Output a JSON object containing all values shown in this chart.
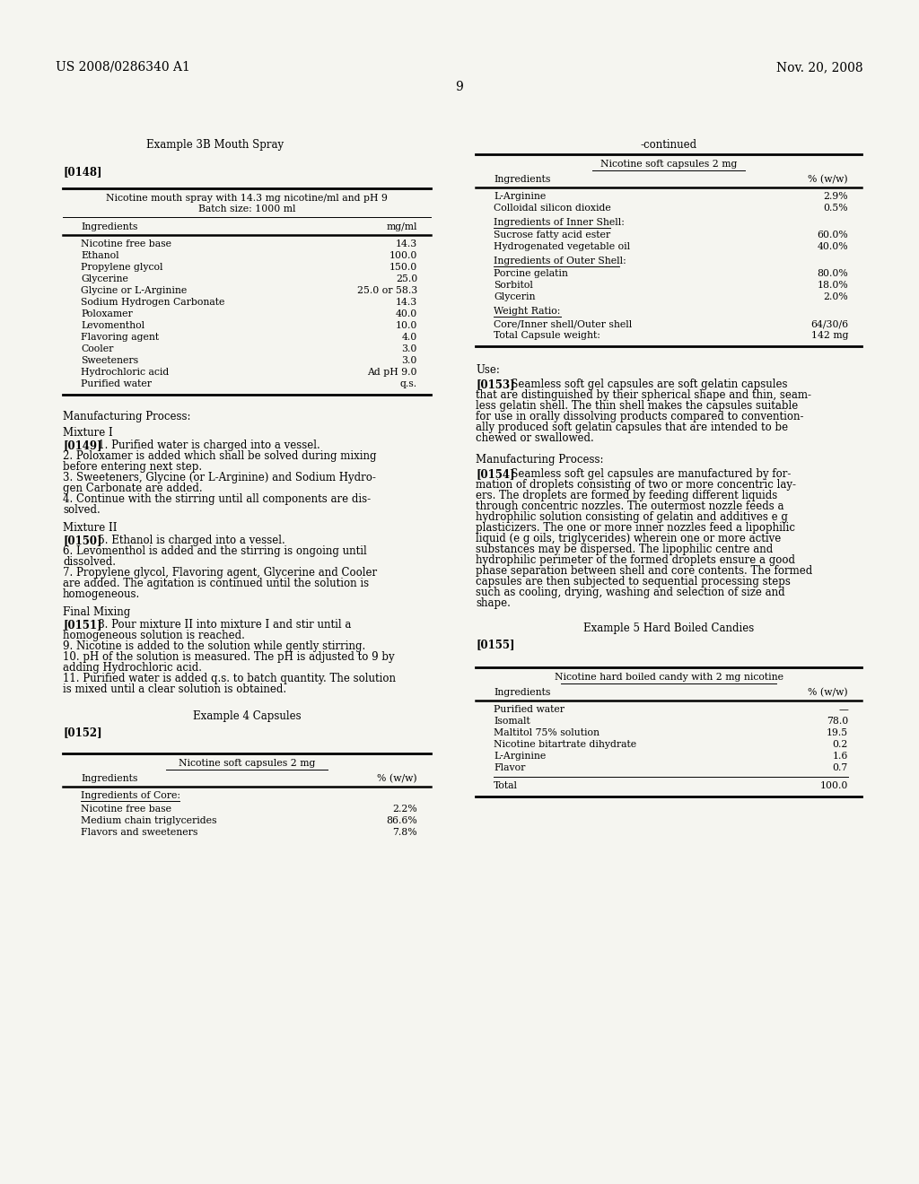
{
  "bg_color": "#f5f5f0",
  "header_left": "US 2008/0286340 A1",
  "header_right": "Nov. 20, 2008",
  "page_number": "9",
  "left_col": {
    "example_title": "Example 3B Mouth Spray",
    "para148": "[0148]",
    "table1": {
      "title1": "Nicotine mouth spray with 14.3 mg nicotine/ml and pH 9",
      "title2": "Batch size: 1000 ml",
      "col1": "Ingredients",
      "col2": "mg/ml",
      "rows": [
        [
          "Nicotine free base",
          "14.3"
        ],
        [
          "Ethanol",
          "100.0"
        ],
        [
          "Propylene glycol",
          "150.0"
        ],
        [
          "Glycerine",
          "25.0"
        ],
        [
          "Glycine or L-Arginine",
          "25.0 or 58.3"
        ],
        [
          "Sodium Hydrogen Carbonate",
          "14.3"
        ],
        [
          "Poloxamer",
          "40.0"
        ],
        [
          "Levomenthol",
          "10.0"
        ],
        [
          "Flavoring agent",
          "4.0"
        ],
        [
          "Cooler",
          "3.0"
        ],
        [
          "Sweeteners",
          "3.0"
        ],
        [
          "Hydrochloric acid",
          "Ad pH 9.0"
        ],
        [
          "Purified water",
          "q.s."
        ]
      ]
    },
    "mfg_title": "Manufacturing Process:",
    "mixture1_title": "Mixture I",
    "para149_bold": "[0149]",
    "para149_text": "   1. Purified water is charged into a vessel.\n2. Poloxamer is added which shall be solved during mixing\nbefore entering next step.\n3. Sweeteners, Glycine (or L-Arginine) and Sodium Hydro-\ngen Carbonate are added.\n4. Continue with the stirring until all components are dis-\nsolved.",
    "mixture2_title": "Mixture II",
    "para150_bold": "[0150]",
    "para150_text": "   5. Ethanol is charged into a vessel.\n6. Levomenthol is added and the stirring is ongoing until\ndissolved.\n7. Propylene glycol, Flavoring agent, Glycerine and Cooler\nare added. The agitation is continued until the solution is\nhomogeneous.",
    "final_title": "Final Mixing",
    "para151_bold": "[0151]",
    "para151_text": "   8. Pour mixture II into mixture I and stir until a\nhomogeneous solution is reached.\n9. Nicotine is added to the solution while gently stirring.\n10. pH of the solution is measured. The pH is adjusted to 9 by\nadding Hydrochloric acid.\n11. Purified water is added q.s. to batch quantity. The solution\nis mixed until a clear solution is obtained.",
    "example4_title": "Example 4 Capsules",
    "para152": "[0152]",
    "table2": {
      "title1": "Nicotine soft capsules 2 mg",
      "col1": "Ingredients",
      "col2": "% (w/w)",
      "section1": "Ingredients of Core:",
      "rows1": [
        [
          "Nicotine free base",
          "2.2%"
        ],
        [
          "Medium chain triglycerides",
          "86.6%"
        ],
        [
          "Flavors and sweeteners",
          "7.8%"
        ]
      ]
    }
  },
  "right_col": {
    "continued": "-continued",
    "table3": {
      "title1": "Nicotine soft capsules 2 mg",
      "col1": "Ingredients",
      "col2": "% (w/w)",
      "rows_top": [
        [
          "L-Arginine",
          "2.9%"
        ],
        [
          "Colloidal silicon dioxide",
          "0.5%"
        ]
      ],
      "section2": "Ingredients of Inner Shell:",
      "rows2": [
        [
          "Sucrose fatty acid ester",
          "60.0%"
        ],
        [
          "Hydrogenated vegetable oil",
          "40.0%"
        ]
      ],
      "section3": "Ingredients of Outer Shell:",
      "rows3": [
        [
          "Porcine gelatin",
          "80.0%"
        ],
        [
          "Sorbitol",
          "18.0%"
        ],
        [
          "Glycerin",
          "2.0%"
        ]
      ],
      "section4": "Weight Ratio:",
      "rows4": [
        [
          "Core/Inner shell/Outer shell",
          "64/30/6"
        ],
        [
          "Total Capsule weight:",
          "142 mg"
        ]
      ]
    },
    "use_label": "Use:",
    "para153_bold": "[0153]",
    "para153_text": "   Seamless soft gel capsules are soft gelatin capsules\nthat are distinguished by their spherical shape and thin, seam-\nless gelatin shell. The thin shell makes the capsules suitable\nfor use in orally dissolving products compared to convention-\nally produced soft gelatin capsules that are intended to be\nchewed or swallowed.",
    "mfg_title2": "Manufacturing Process:",
    "para154_bold": "[0154]",
    "para154_text": "   Seamless soft gel capsules are manufactured by for-\nmation of droplets consisting of two or more concentric lay-\ners. The droplets are formed by feeding different liquids\nthrough concentric nozzles. The outermost nozzle feeds a\nhydrophilic solution consisting of gelatin and additives e g\nplasticizers. The one or more inner nozzles feed a lipophilic\nliquid (e g oils, triglycerides) wherein one or more active\nsubstances may be dispersed. The lipophilic centre and\nhydrophilic perimeter of the formed droplets ensure a good\nphase separation between shell and core contents. The formed\ncapsules are then subjected to sequential processing steps\nsuch as cooling, drying, washing and selection of size and\nshape.",
    "example5_title": "Example 5 Hard Boiled Candies",
    "para155": "[0155]",
    "table4": {
      "title1": "Nicotine hard boiled candy with 2 mg nicotine",
      "col1": "Ingredients",
      "col2": "% (w/w)",
      "rows": [
        [
          "Purified water",
          "—"
        ],
        [
          "Isomalt",
          "78.0"
        ],
        [
          "Maltitol 75% solution",
          "19.5"
        ],
        [
          "Nicotine bitartrate dihydrate",
          "0.2"
        ],
        [
          "L-Arginine",
          "1.6"
        ],
        [
          "Flavor",
          "0.7"
        ]
      ],
      "total_row": [
        "Total",
        "100.0"
      ]
    }
  }
}
